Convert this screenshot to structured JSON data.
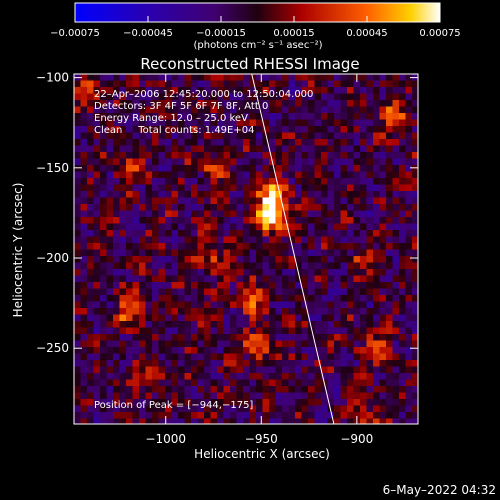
{
  "chart_data": {
    "type": "heatmap",
    "title": "Reconstructed RHESSI Image",
    "xlabel": "Heliocentric X (arcsec)",
    "ylabel": "Heliocentric Y (arcsec)",
    "xlim": [
      -1048,
      -868
    ],
    "ylim": [
      -292,
      -98
    ],
    "x_ticks": [
      {
        "value": -1000,
        "label": "−1000"
      },
      {
        "value": -950,
        "label": "−950"
      },
      {
        "value": -900,
        "label": "−900"
      }
    ],
    "y_ticks": [
      {
        "value": -100,
        "label": "−100"
      },
      {
        "value": -150,
        "label": "−150"
      },
      {
        "value": -200,
        "label": "−200"
      },
      {
        "value": -250,
        "label": "−250"
      }
    ],
    "colorbar": {
      "range": [
        -0.00075,
        0.00075
      ],
      "ticks": [
        {
          "value": -0.00075,
          "label": "−0.00075"
        },
        {
          "value": -0.00045,
          "label": "−0.00045"
        },
        {
          "value": -0.00015,
          "label": "−0.00015"
        },
        {
          "value": 0.00015,
          "label": "0.00015"
        },
        {
          "value": 0.00045,
          "label": "0.00045"
        },
        {
          "value": 0.00075,
          "label": "0.00075"
        }
      ],
      "unit": "(photons cm⁻² s⁻¹ asec⁻²)"
    },
    "annotations": [
      "22–Apr–2006 12:45:20.000 to 12:50:04.000",
      "Detectors: 3F 4F 5F 6F 7F 8F, Att 0",
      "Energy Range: 12.0 – 25.0 keV",
      "Clean     Total counts: 1.49E+04"
    ],
    "peak_label": "Position of Peak = [−944,−175]",
    "peak": [
      -944,
      -175
    ],
    "limb_line": [
      [
        -955,
        -98
      ],
      [
        -912,
        -292
      ]
    ],
    "hotspots": [
      {
        "x": -945,
        "y": -178,
        "value": 0.00075
      },
      {
        "x": -944,
        "y": -165,
        "value": 0.0007
      },
      {
        "x": -956,
        "y": -222,
        "value": 0.00042
      },
      {
        "x": -952,
        "y": -250,
        "value": 0.0004
      },
      {
        "x": -975,
        "y": -200,
        "value": 0.00036
      },
      {
        "x": -1018,
        "y": -228,
        "value": 0.00052
      },
      {
        "x": -1020,
        "y": -150,
        "value": 0.00032
      },
      {
        "x": -1008,
        "y": -265,
        "value": 0.0003
      },
      {
        "x": -975,
        "y": -150,
        "value": 0.0003
      },
      {
        "x": -880,
        "y": -122,
        "value": 0.00045
      },
      {
        "x": -890,
        "y": -250,
        "value": 0.00038
      },
      {
        "x": -895,
        "y": -290,
        "value": 0.00035
      },
      {
        "x": -895,
        "y": -200,
        "value": 0.00028
      },
      {
        "x": -1040,
        "y": -110,
        "value": 0.0003
      }
    ]
  },
  "footer": {
    "timestamp": "6–May–2022 04:32"
  }
}
